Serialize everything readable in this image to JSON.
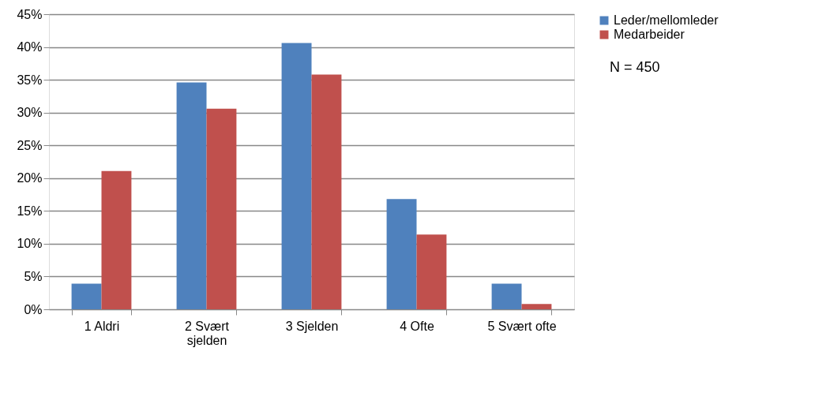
{
  "chart_data": {
    "type": "bar",
    "categories": [
      "1 Aldri",
      "2 Svært sjelden",
      "3 Sjelden",
      "4 Ofte",
      "5 Svært ofte"
    ],
    "series": [
      {
        "name": "Leder/mellomleder",
        "color": "#4f81bd",
        "values": [
          3.9,
          34.6,
          40.6,
          16.8,
          3.9
        ]
      },
      {
        "name": "Medarbeider",
        "color": "#c0504d",
        "values": [
          21.1,
          30.6,
          35.8,
          11.4,
          0.8
        ]
      }
    ],
    "ylim": [
      0,
      45
    ],
    "yticks": [
      {
        "value": 0,
        "label": "0%"
      },
      {
        "value": 5,
        "label": "5%"
      },
      {
        "value": 10,
        "label": "10%"
      },
      {
        "value": 15,
        "label": "15%"
      },
      {
        "value": 20,
        "label": "20%"
      },
      {
        "value": 25,
        "label": "25%"
      },
      {
        "value": 30,
        "label": "30%"
      },
      {
        "value": 35,
        "label": "35%"
      },
      {
        "value": 40,
        "label": "40%"
      },
      {
        "value": 45,
        "label": "45%"
      }
    ],
    "grid": "y",
    "legend": "right",
    "annotations": [
      "N = 450"
    ]
  }
}
